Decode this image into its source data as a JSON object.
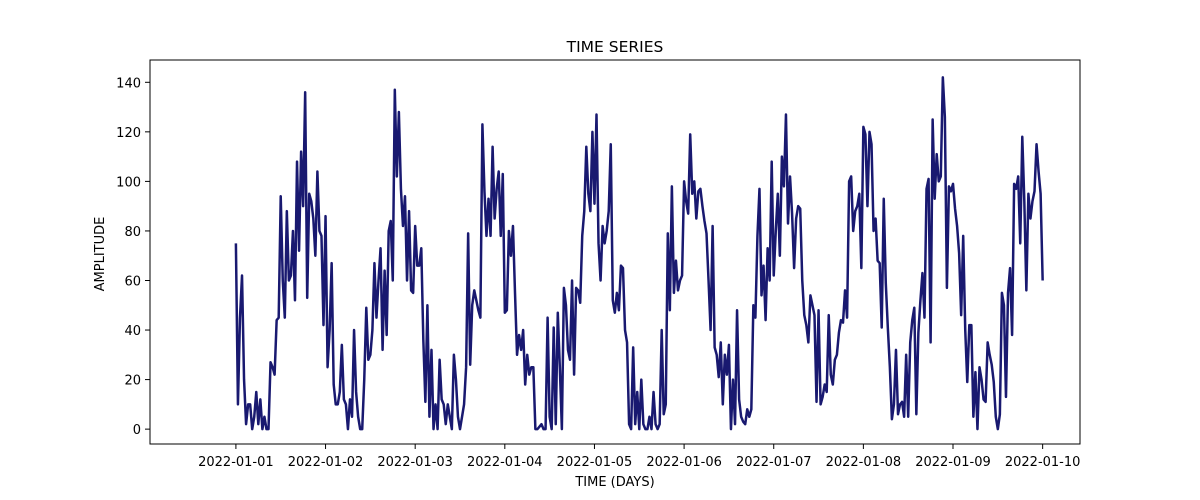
{
  "chart_data": {
    "type": "line",
    "title": "TIME SERIES",
    "xlabel": "TIME (DAYS)",
    "ylabel": "AMPLITUDE",
    "x_ticks": [
      "2022-01-01",
      "2022-01-02",
      "2022-01-03",
      "2022-01-04",
      "2022-01-05",
      "2022-01-06",
      "2022-01-07",
      "2022-01-08",
      "2022-01-09",
      "2022-01-10"
    ],
    "y_ticks": [
      0,
      20,
      40,
      60,
      80,
      100,
      120,
      140
    ],
    "xlim": [
      "2021-12-31T01:00",
      "2022-01-10T10:00"
    ],
    "ylim": [
      -6,
      149
    ],
    "grid": false,
    "series": [
      {
        "color": "#191970",
        "x_start": "2022-01-01T00:00",
        "x_end": "2022-01-10T00:00",
        "values": [
          75,
          10,
          45,
          62,
          20,
          2,
          10,
          10,
          0,
          5,
          15,
          2,
          12,
          0,
          5,
          0,
          0,
          27,
          25,
          22,
          44,
          45,
          94,
          60,
          45,
          88,
          60,
          62,
          80,
          52,
          108,
          72,
          112,
          90,
          136,
          53,
          95,
          92,
          85,
          70,
          104,
          80,
          78,
          42,
          86,
          25,
          40,
          67,
          18,
          10,
          10,
          15,
          34,
          12,
          10,
          0,
          12,
          5,
          40,
          15,
          5,
          0,
          0,
          20,
          49,
          28,
          30,
          40,
          67,
          45,
          60,
          73,
          32,
          64,
          38,
          80,
          84,
          60,
          137,
          102,
          128,
          97,
          82,
          94,
          60,
          88,
          56,
          55,
          82,
          66,
          66,
          73,
          36,
          11,
          50,
          5,
          32,
          0,
          10,
          0,
          28,
          12,
          10,
          2,
          10,
          5,
          0,
          30,
          20,
          5,
          0,
          5,
          10,
          25,
          79,
          26,
          50,
          56,
          52,
          48,
          45,
          123,
          96,
          78,
          93,
          78,
          114,
          85,
          97,
          104,
          78,
          103,
          47,
          48,
          80,
          70,
          82,
          55,
          30,
          38,
          32,
          40,
          18,
          30,
          22,
          25,
          25,
          0,
          0,
          1,
          2,
          0,
          0,
          45,
          5,
          0,
          41,
          2,
          47,
          25,
          0,
          57,
          50,
          32,
          28,
          60,
          22,
          57,
          56,
          51,
          78,
          88,
          114,
          95,
          88,
          120,
          91,
          127,
          75,
          60,
          82,
          75,
          80,
          88,
          115,
          52,
          47,
          55,
          48,
          66,
          65,
          40,
          35,
          2,
          0,
          33,
          2,
          15,
          0,
          20,
          2,
          0,
          0,
          5,
          0,
          15,
          2,
          0,
          2,
          40,
          6,
          10,
          79,
          48,
          98,
          55,
          68,
          56,
          60,
          62,
          100,
          92,
          87,
          119,
          95,
          100,
          85,
          96,
          97,
          90,
          84,
          79,
          60,
          40,
          82,
          33,
          30,
          21,
          35,
          10,
          30,
          22,
          34,
          0,
          20,
          2,
          48,
          12,
          5,
          3,
          2,
          8,
          5,
          8,
          50,
          45,
          78,
          97,
          54,
          66,
          44,
          73,
          60,
          108,
          62,
          80,
          95,
          70,
          110,
          98,
          127,
          83,
          102,
          87,
          65,
          85,
          90,
          89,
          60,
          46,
          42,
          35,
          54,
          50,
          46,
          11,
          48,
          10,
          13,
          18,
          15,
          46,
          22,
          18,
          28,
          30,
          39,
          44,
          43,
          56,
          45,
          100,
          102,
          80,
          88,
          90,
          95,
          65,
          122,
          119,
          90,
          120,
          115,
          80,
          85,
          68,
          67,
          41,
          93,
          59,
          41,
          25,
          4,
          10,
          32,
          6,
          10,
          11,
          5,
          30,
          5,
          35,
          44,
          49,
          6,
          39,
          52,
          63,
          45,
          97,
          101,
          35,
          125,
          93,
          111,
          100,
          102,
          142,
          126,
          57,
          98,
          96,
          99,
          89,
          82,
          71,
          46,
          78,
          40,
          19,
          42,
          42,
          5,
          23,
          0,
          25,
          20,
          12,
          11,
          35,
          30,
          26,
          19,
          5,
          0,
          6,
          55,
          50,
          13,
          55,
          65,
          38,
          99,
          97,
          102,
          75,
          118,
          92,
          56,
          95,
          85,
          92,
          96,
          115,
          104,
          95,
          60
        ]
      }
    ]
  }
}
